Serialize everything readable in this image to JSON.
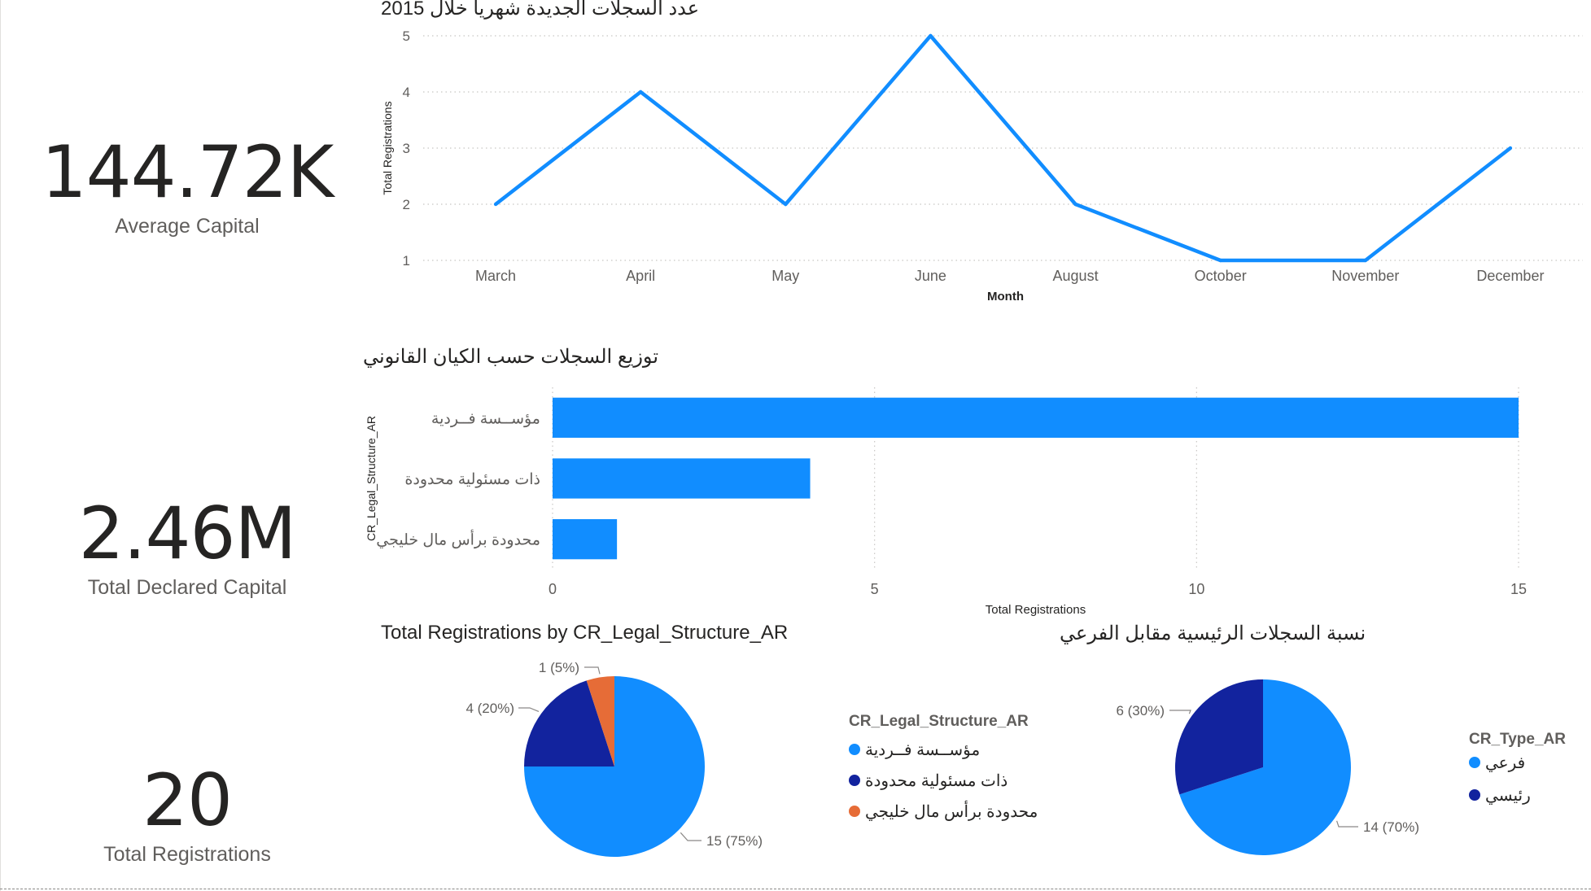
{
  "kpis": {
    "avg_capital": {
      "value": "144.72K",
      "label": "Average Capital"
    },
    "total_declared_capital": {
      "value": "2.46M",
      "label": "Total Declared Capital"
    },
    "total_registrations": {
      "value": "20",
      "label": "Total Registrations"
    }
  },
  "colors": {
    "primary": "#118DFF",
    "dark_blue": "#12239E",
    "orange": "#E66C37",
    "grid": "#c8c6c4",
    "text": "#605e5c"
  },
  "chart_data": [
    {
      "id": "line",
      "type": "line",
      "title": "عدد السجلات الجديدة شهريا خلال 2015",
      "xlabel": "Month",
      "ylabel": "Total Registrations",
      "categories": [
        "March",
        "April",
        "May",
        "June",
        "August",
        "October",
        "November",
        "December"
      ],
      "values": [
        2,
        4,
        2,
        5,
        2,
        1,
        1,
        3
      ],
      "ylim": [
        1,
        5
      ],
      "yticks": [
        1,
        2,
        3,
        4,
        5
      ],
      "grid": true
    },
    {
      "id": "bar",
      "type": "bar",
      "orientation": "horizontal",
      "title": "توزيع السجلات حسب الكيان القانوني",
      "xlabel": "Total Registrations",
      "ylabel": "CR_Legal_Structure_AR",
      "categories": [
        "مؤســسة فــردية",
        "ذات مسئولية محدودة",
        "محدودة برأس مال خليجي"
      ],
      "values": [
        15,
        4,
        1
      ],
      "xlim": [
        0,
        15
      ],
      "xticks": [
        0,
        5,
        10,
        15
      ],
      "grid": true
    },
    {
      "id": "pie1",
      "type": "pie",
      "title": "Total Registrations by CR_Legal_Structure_AR",
      "legend_title": "CR_Legal_Structure_AR",
      "legend_position": "right",
      "slices": [
        {
          "label": "مؤســسة فــردية",
          "value": 15,
          "data_label": "15 (75%)",
          "color": "#118DFF"
        },
        {
          "label": "ذات مسئولية محدودة",
          "value": 4,
          "data_label": "4 (20%)",
          "color": "#12239E"
        },
        {
          "label": "محدودة برأس مال خليجي",
          "value": 1,
          "data_label": "1 (5%)",
          "color": "#E66C37"
        }
      ]
    },
    {
      "id": "pie2",
      "type": "pie",
      "title": "نسبة السجلات الرئيسية مقابل الفرعي",
      "legend_title": "CR_Type_AR",
      "legend_position": "right",
      "slices": [
        {
          "label": "فرعي",
          "value": 14,
          "data_label": "14 (70%)",
          "color": "#118DFF"
        },
        {
          "label": "رئيسي",
          "value": 6,
          "data_label": "6 (30%)",
          "color": "#12239E"
        }
      ]
    }
  ]
}
